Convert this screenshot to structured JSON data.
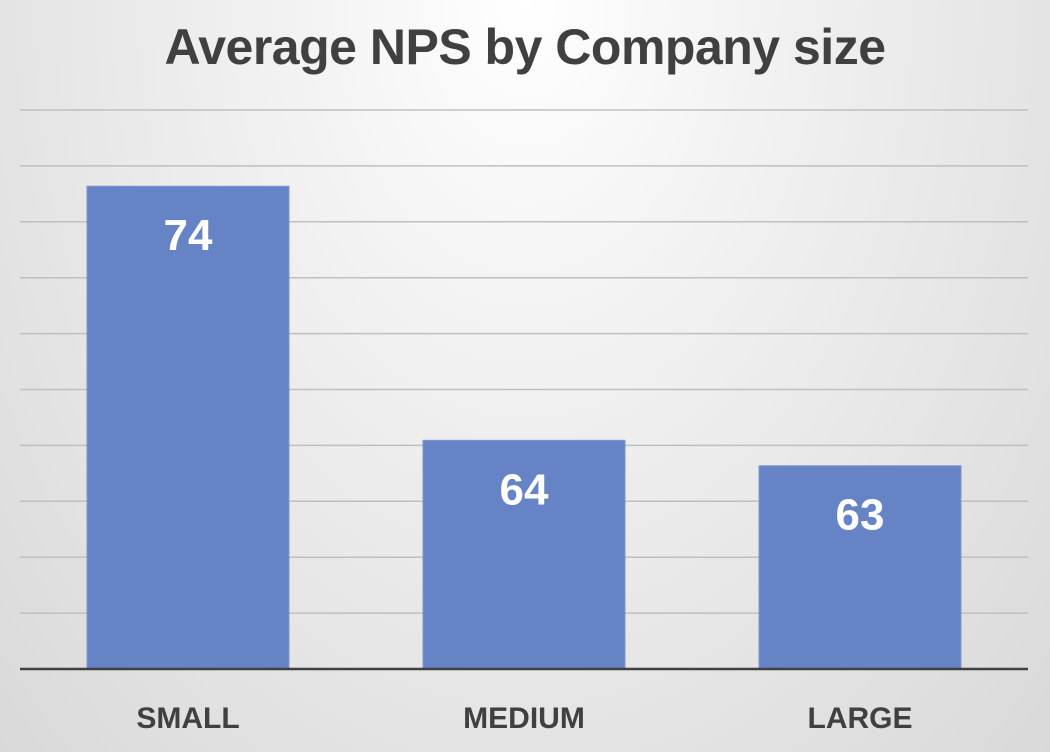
{
  "chart_data": {
    "type": "bar",
    "title": "Average NPS by Company size",
    "categories": [
      "SMALL",
      "MEDIUM",
      "LARGE"
    ],
    "values": [
      74,
      64,
      63
    ],
    "data_labels": [
      "74",
      "64",
      "63"
    ],
    "ylim": [
      55,
      77
    ],
    "grid": true,
    "legend": "none",
    "colors": {
      "bar": "#6683C6",
      "gridline": "#BFBFBF",
      "axis": "#404040",
      "title": "#404040",
      "label": "#FFFFFF"
    }
  }
}
